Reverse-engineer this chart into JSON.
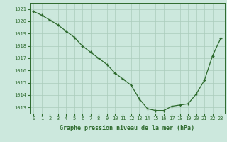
{
  "hours": [
    0,
    1,
    2,
    3,
    4,
    5,
    6,
    7,
    8,
    9,
    10,
    11,
    12,
    13,
    14,
    15,
    16,
    17,
    18,
    19,
    20,
    21,
    22,
    23
  ],
  "pressure": [
    1020.8,
    1020.5,
    1020.1,
    1019.7,
    1019.2,
    1018.7,
    1018.0,
    1017.5,
    1017.0,
    1016.5,
    1015.8,
    1015.3,
    1014.8,
    1013.7,
    1012.9,
    1012.75,
    1012.75,
    1013.1,
    1013.2,
    1013.3,
    1014.1,
    1015.2,
    1017.2,
    1018.6
  ],
  "ylim": [
    1012.5,
    1021.5
  ],
  "yticks": [
    1013,
    1014,
    1015,
    1016,
    1017,
    1018,
    1019,
    1020,
    1021
  ],
  "xticks": [
    0,
    1,
    2,
    3,
    4,
    5,
    6,
    7,
    8,
    9,
    10,
    11,
    12,
    13,
    14,
    15,
    16,
    17,
    18,
    19,
    20,
    21,
    22,
    23
  ],
  "line_color": "#2d6a2d",
  "marker": "+",
  "marker_size": 3,
  "bg_color": "#cce8dd",
  "grid_color": "#aaccbb",
  "xlabel": "Graphe pression niveau de la mer (hPa)",
  "xlabel_fontsize": 6,
  "tick_fontsize": 5,
  "line_width": 0.9
}
